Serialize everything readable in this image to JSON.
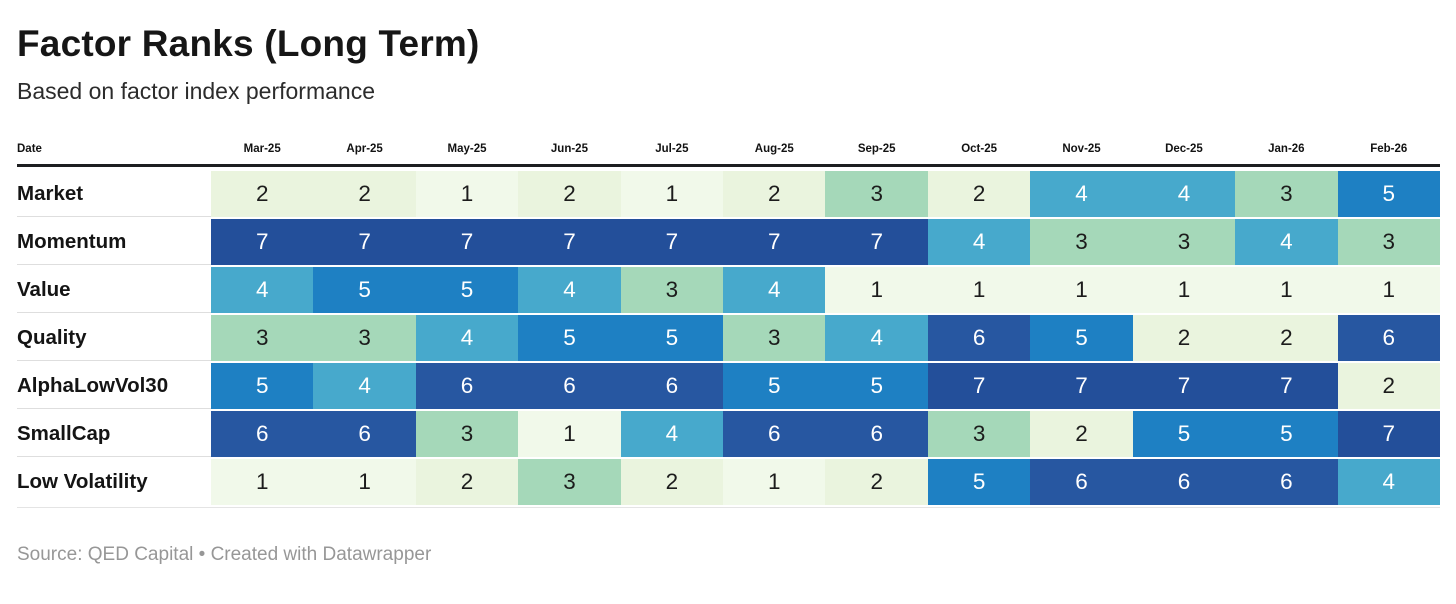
{
  "header": {
    "title": "Factor Ranks (Long Term)",
    "subtitle": "Based on factor index performance"
  },
  "footer": {
    "text": "Source: QED Capital • Created with Datawrapper"
  },
  "chart_data": {
    "type": "heatmap",
    "title": "Factor Ranks (Long Term)",
    "subtitle": "Based on factor index performance",
    "corner_label": "Date",
    "columns": [
      "Mar-25",
      "Apr-25",
      "May-25",
      "Jun-25",
      "Jul-25",
      "Aug-25",
      "Sep-25",
      "Oct-25",
      "Nov-25",
      "Dec-25",
      "Jan-26",
      "Feb-26"
    ],
    "rows": [
      {
        "label": "Market",
        "values": [
          2,
          2,
          1,
          2,
          1,
          2,
          3,
          2,
          4,
          4,
          3,
          5
        ]
      },
      {
        "label": "Momentum",
        "values": [
          7,
          7,
          7,
          7,
          7,
          7,
          7,
          4,
          3,
          3,
          4,
          3
        ]
      },
      {
        "label": "Value",
        "values": [
          4,
          5,
          5,
          4,
          3,
          4,
          1,
          1,
          1,
          1,
          1,
          1
        ]
      },
      {
        "label": "Quality",
        "values": [
          3,
          3,
          4,
          5,
          5,
          3,
          4,
          6,
          5,
          2,
          2,
          6
        ]
      },
      {
        "label": "AlphaLowVol30",
        "values": [
          5,
          4,
          6,
          6,
          6,
          5,
          5,
          7,
          7,
          7,
          7,
          2
        ]
      },
      {
        "label": "SmallCap",
        "values": [
          6,
          6,
          3,
          1,
          4,
          6,
          6,
          3,
          2,
          5,
          5,
          7
        ]
      },
      {
        "label": "Low Volatility",
        "values": [
          1,
          1,
          2,
          3,
          2,
          1,
          2,
          5,
          6,
          6,
          6,
          4
        ]
      }
    ],
    "value_range": [
      1,
      7
    ],
    "color_scale": [
      "#f1f9ea",
      "#eaf4de",
      "#a5d8b9",
      "#47a9cc",
      "#1e80c3",
      "#2757a1",
      "#234f9a"
    ],
    "text_color_dark": "#1c1c1c",
    "text_color_light": "#ffffff",
    "light_text_min_value": 4,
    "legend_position": "none",
    "grid": false
  }
}
